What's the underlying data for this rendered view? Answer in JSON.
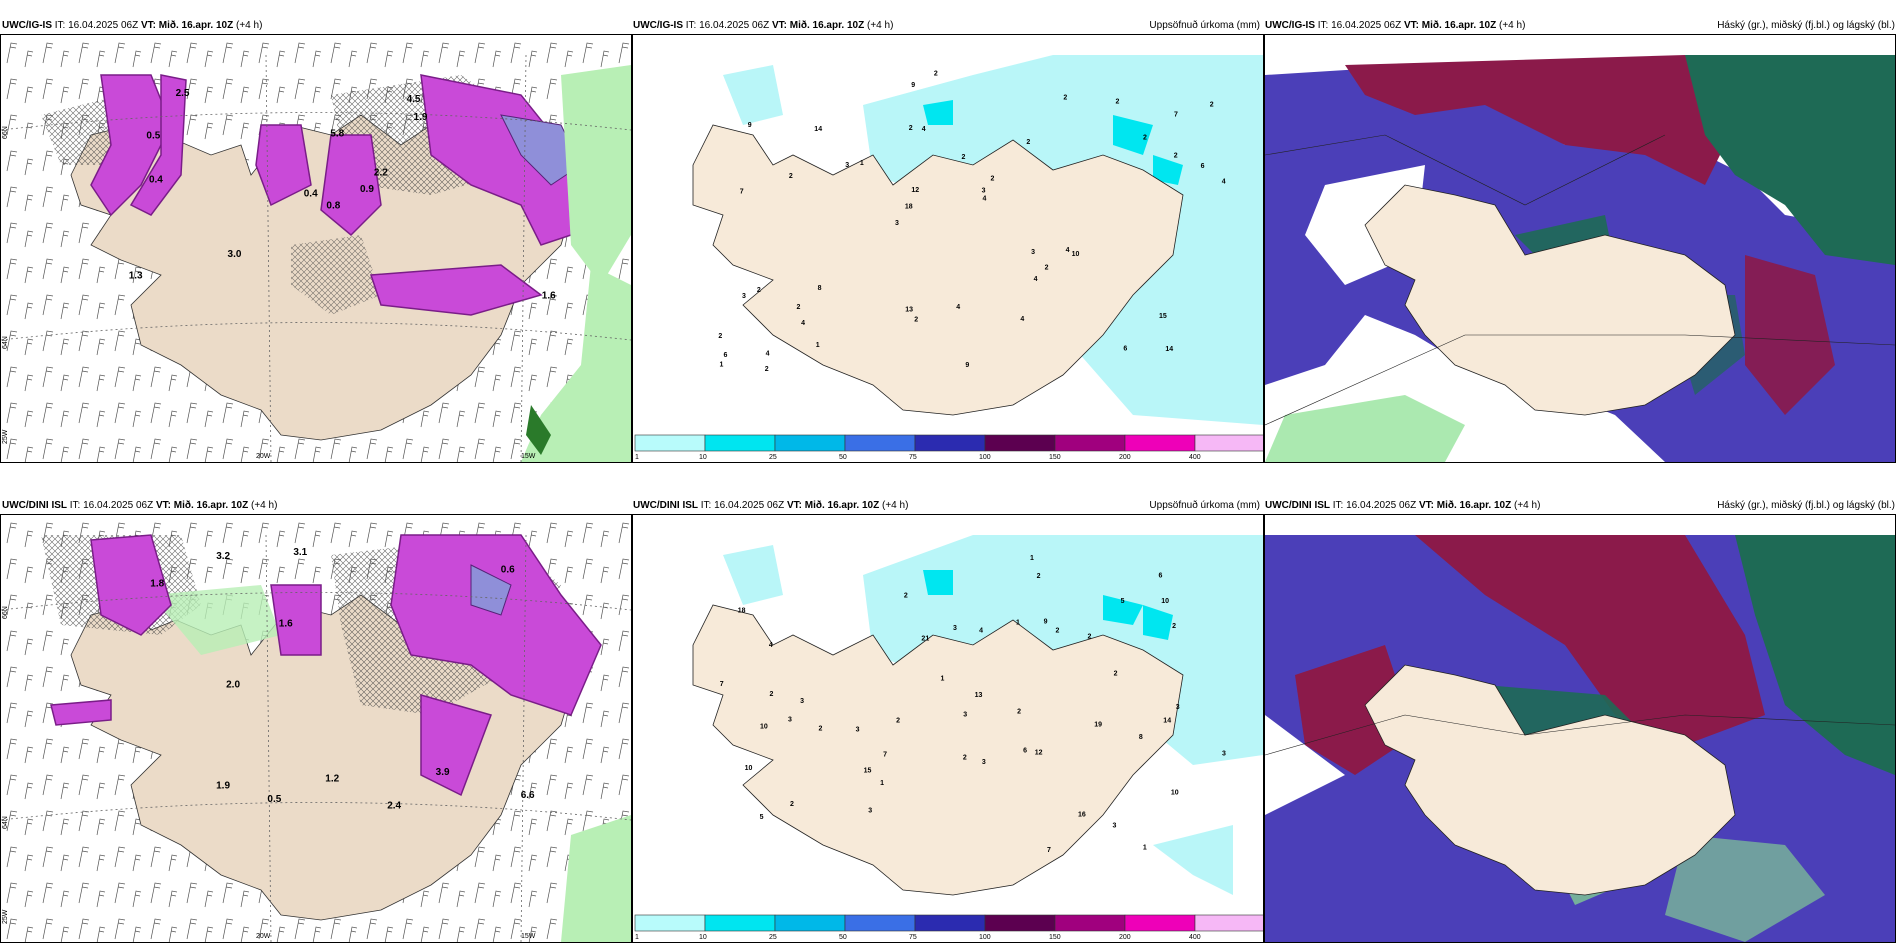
{
  "rows": [
    {
      "model": "UWC/IG-IS",
      "it_label": "IT:",
      "it_value": "16.04.2025 06Z",
      "vt_label": "VT:",
      "vt_value": "Mið. 16.apr. 10Z",
      "lead": "(+4 h)",
      "lat_labels": [
        "66N",
        "64N",
        "25W"
      ],
      "lon_labels": [
        "20W",
        "15W"
      ],
      "wind_panel_values": [
        "0.8",
        "0.5",
        "0.4",
        "1.3",
        "2.2",
        "3.0",
        "4.5",
        "5.8",
        "1.9",
        "0.9",
        "2.5",
        "1.6",
        "0.4"
      ],
      "precip_numbers": [
        "14",
        "7",
        "7",
        "3",
        "2",
        "4",
        "2",
        "2",
        "2",
        "1",
        "2",
        "4",
        "4",
        "2",
        "10",
        "9",
        "9",
        "4",
        "3",
        "2",
        "18",
        "13",
        "12",
        "14",
        "2",
        "8",
        "6",
        "15",
        "4",
        "9",
        "3",
        "2",
        "4",
        "1",
        "6",
        "3",
        "6",
        "2",
        "4",
        "3",
        "2",
        "2",
        "2",
        "4",
        "2",
        "2",
        "1",
        "4",
        "2",
        "2"
      ],
      "cloud_panel_title": "Háský (gr.), miðský (fj.bl.) og lágský (bl.)"
    },
    {
      "model": "UWC/DINI ISL",
      "it_label": "IT:",
      "it_value": "16.04.2025 06Z",
      "vt_label": "VT:",
      "vt_value": "Mið. 16.apr. 10Z",
      "lead": "(+4 h)",
      "lat_labels": [
        "66N",
        "64N",
        "25W"
      ],
      "lon_labels": [
        "20W",
        "15W"
      ],
      "wind_panel_values": [
        "0.5",
        "2.4",
        "1.9",
        "3.9",
        "3.2",
        "1.8",
        "2.0",
        "6.6",
        "3.1",
        "1.6",
        "0.6",
        "1.2"
      ],
      "precip_numbers": [
        "1",
        "3",
        "6",
        "18",
        "10",
        "4",
        "2",
        "3",
        "2",
        "3",
        "2",
        "3",
        "1",
        "2",
        "2",
        "10",
        "19",
        "13",
        "7",
        "5",
        "6",
        "4",
        "2",
        "3",
        "3",
        "2",
        "2",
        "3",
        "1",
        "10",
        "12",
        "10",
        "15",
        "9",
        "21",
        "8",
        "14",
        "16",
        "5",
        "7",
        "7",
        "3",
        "3",
        "1",
        "2",
        "3",
        "2",
        "2",
        "1",
        "2"
      ],
      "cloud_panel_title": "Háský (gr.), miðský (fj.bl.) og lágský (bl.)"
    }
  ],
  "precip_panel_title": "Uppsöfnuð úrkoma (mm)",
  "colorbar": {
    "ticks": [
      "1",
      "10",
      "25",
      "50",
      "75",
      "100",
      "150",
      "200",
      "400"
    ],
    "colors": [
      "#b8fbfb",
      "#00e5f0",
      "#00b8e8",
      "#3a6fe6",
      "#2b2bb0",
      "#5c0050",
      "#a0007e",
      "#ee00b8",
      "#f6b8f6"
    ]
  },
  "colors": {
    "land": "#f7ead9",
    "sea_precip": "#b9f6f8",
    "precip_mid": "#00e6f0",
    "magenta": "#b23bc8",
    "green": "#88e08e",
    "cloud_high": "#8b1a4a",
    "cloud_mid": "#4b3fb8",
    "cloud_low": "#1e6a55"
  }
}
